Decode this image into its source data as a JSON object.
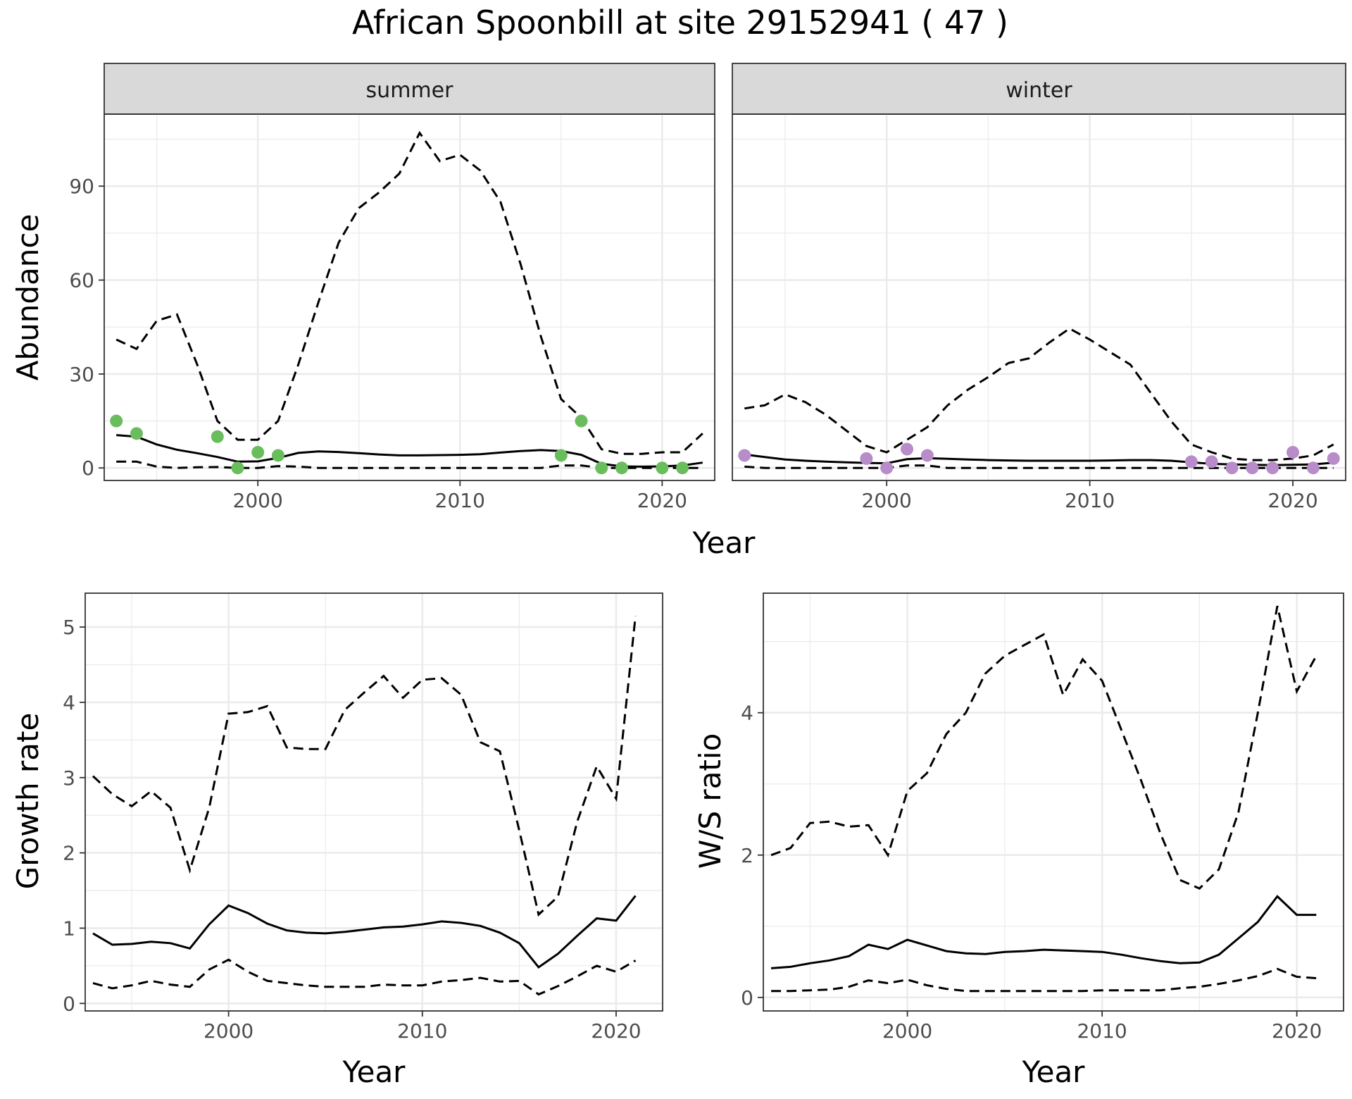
{
  "figure": {
    "title": "African Spoonbill at site 29152941 ( 47 )"
  },
  "chart_data": [
    {
      "id": "abundance-summer",
      "type": "line",
      "strip": "summer",
      "xlabel": "",
      "ylabel": "Abundance",
      "xlim": [
        1992.4,
        2022.6
      ],
      "ylim": [
        -4,
        113
      ],
      "xticks": [
        2000,
        2010,
        2020
      ],
      "yticks": [
        0,
        30,
        60,
        90
      ],
      "grid": true,
      "series": [
        {
          "role": "estimate",
          "x": [
            1993,
            1994,
            1995,
            1996,
            1997,
            1998,
            1999,
            2000,
            2001,
            2002,
            2003,
            2004,
            2005,
            2006,
            2007,
            2008,
            2009,
            2010,
            2011,
            2012,
            2013,
            2014,
            2015,
            2016,
            2017,
            2018,
            2019,
            2020,
            2021,
            2022
          ],
          "y": [
            10.5,
            10,
            7.5,
            5.8,
            4.7,
            3.5,
            2,
            2.1,
            3.2,
            4.8,
            5.3,
            5.1,
            4.7,
            4.3,
            4,
            4,
            4.1,
            4.2,
            4.4,
            4.9,
            5.4,
            5.7,
            5.4,
            4.2,
            1.3,
            0.5,
            0.4,
            0.5,
            0.8,
            1.7
          ]
        },
        {
          "role": "upper",
          "x": [
            1993,
            1994,
            1995,
            1996,
            1997,
            1998,
            1999,
            2000,
            2001,
            2002,
            2003,
            2004,
            2005,
            2006,
            2007,
            2008,
            2009,
            2010,
            2011,
            2012,
            2013,
            2014,
            2015,
            2016,
            2017,
            2018,
            2019,
            2020,
            2021,
            2022
          ],
          "y": [
            41,
            38,
            47,
            49,
            33,
            15,
            9,
            9,
            15,
            33,
            53,
            72,
            83,
            88,
            94,
            107,
            98,
            100,
            95,
            85,
            65,
            42,
            22,
            16,
            6,
            4.5,
            4.5,
            5,
            5,
            11
          ]
        },
        {
          "role": "lower",
          "x": [
            1993,
            1994,
            1995,
            1996,
            1997,
            1998,
            1999,
            2000,
            2001,
            2002,
            2003,
            2004,
            2005,
            2006,
            2007,
            2008,
            2009,
            2010,
            2011,
            2012,
            2013,
            2014,
            2015,
            2016,
            2017,
            2018,
            2019,
            2020,
            2021,
            2022
          ],
          "y": [
            2,
            2,
            0.4,
            0,
            0.2,
            0.3,
            0,
            0,
            0.6,
            0.4,
            0,
            0,
            0,
            0,
            0,
            0,
            0,
            0,
            0,
            0,
            0,
            0,
            0.8,
            0.8,
            0,
            0,
            0,
            0,
            0,
            0
          ]
        }
      ],
      "points": {
        "color": "#6abd5c",
        "x": [
          1993,
          1994,
          1998,
          1999,
          2000,
          2001,
          2015,
          2016,
          2017,
          2018,
          2020,
          2021
        ],
        "y": [
          15,
          11,
          10,
          0,
          5,
          4,
          4,
          15,
          0,
          0,
          0,
          0
        ]
      }
    },
    {
      "id": "abundance-winter",
      "type": "line",
      "strip": "winter",
      "xlabel": "",
      "ylabel": "",
      "xlim": [
        1992.4,
        2022.6
      ],
      "ylim": [
        -4,
        113
      ],
      "xticks": [
        2000,
        2010,
        2020
      ],
      "yticks": [
        0,
        30,
        60,
        90
      ],
      "grid": true,
      "series": [
        {
          "role": "estimate",
          "x": [
            1993,
            1994,
            1995,
            1996,
            1997,
            1998,
            1999,
            2000,
            2001,
            2002,
            2003,
            2004,
            2005,
            2006,
            2007,
            2008,
            2009,
            2010,
            2011,
            2012,
            2013,
            2014,
            2015,
            2016,
            2017,
            2018,
            2019,
            2020,
            2021,
            2022
          ],
          "y": [
            4.3,
            3.5,
            2.7,
            2.3,
            2,
            1.8,
            1.6,
            1.5,
            2.8,
            3.1,
            2.9,
            2.7,
            2.5,
            2.4,
            2.3,
            2.3,
            2.3,
            2.3,
            2.4,
            2.5,
            2.5,
            2.3,
            1.8,
            1.3,
            1.1,
            1,
            0.9,
            1,
            1.1,
            1.7
          ]
        },
        {
          "role": "upper",
          "x": [
            1993,
            1994,
            1995,
            1996,
            1997,
            1998,
            1999,
            2000,
            2001,
            2002,
            2003,
            2004,
            2005,
            2006,
            2007,
            2008,
            2009,
            2010,
            2011,
            2012,
            2013,
            2014,
            2015,
            2016,
            2017,
            2018,
            2019,
            2020,
            2021,
            2022
          ],
          "y": [
            19,
            20,
            23.5,
            21,
            17,
            12,
            7,
            5,
            9,
            13,
            20,
            25,
            29,
            33.5,
            35,
            40,
            44.5,
            41,
            37,
            33,
            24,
            15,
            7.5,
            5,
            3,
            2.5,
            2.5,
            3,
            4,
            7.5
          ]
        },
        {
          "role": "lower",
          "x": [
            1993,
            1994,
            1995,
            1996,
            1997,
            1998,
            1999,
            2000,
            2001,
            2002,
            2003,
            2004,
            2005,
            2006,
            2007,
            2008,
            2009,
            2010,
            2011,
            2012,
            2013,
            2014,
            2015,
            2016,
            2017,
            2018,
            2019,
            2020,
            2021,
            2022
          ],
          "y": [
            0.4,
            0,
            0,
            0,
            0,
            0,
            0,
            0,
            0.8,
            0.8,
            0,
            0,
            0,
            0,
            0,
            0,
            0,
            0,
            0,
            0,
            0,
            0,
            0,
            0,
            0,
            0,
            0,
            0,
            0,
            0
          ]
        }
      ],
      "points": {
        "color": "#b78cc9",
        "x": [
          1993,
          1999,
          2000,
          2001,
          2002,
          2015,
          2016,
          2017,
          2018,
          2019,
          2020,
          2021,
          2022
        ],
        "y": [
          4,
          3,
          0,
          6,
          4,
          2,
          2,
          0,
          0,
          0,
          5,
          0,
          3
        ]
      }
    },
    {
      "id": "growth-rate",
      "type": "line",
      "xlabel": "Year",
      "ylabel": "Growth rate",
      "xlim": [
        1992.6,
        2022.4
      ],
      "ylim": [
        -0.1,
        5.45
      ],
      "xticks": [
        2000,
        2010,
        2020
      ],
      "yticks": [
        0,
        1,
        2,
        3,
        4,
        5
      ],
      "grid": true,
      "series": [
        {
          "role": "estimate",
          "x": [
            1993,
            1994,
            1995,
            1996,
            1997,
            1998,
            1999,
            2000,
            2001,
            2002,
            2003,
            2004,
            2005,
            2006,
            2007,
            2008,
            2009,
            2010,
            2011,
            2012,
            2013,
            2014,
            2015,
            2016,
            2017,
            2018,
            2019,
            2020,
            2021
          ],
          "y": [
            0.93,
            0.78,
            0.79,
            0.82,
            0.8,
            0.73,
            1.05,
            1.3,
            1.2,
            1.06,
            0.97,
            0.94,
            0.93,
            0.95,
            0.98,
            1.01,
            1.02,
            1.05,
            1.09,
            1.07,
            1.03,
            0.94,
            0.8,
            0.48,
            0.66,
            0.9,
            1.13,
            1.1,
            1.43
          ]
        },
        {
          "role": "upper",
          "x": [
            1993,
            1994,
            1995,
            1996,
            1997,
            1998,
            1999,
            2000,
            2001,
            2002,
            2003,
            2004,
            2005,
            2006,
            2007,
            2008,
            2009,
            2010,
            2011,
            2012,
            2013,
            2014,
            2015,
            2016,
            2017,
            2018,
            2019,
            2020,
            2021
          ],
          "y": [
            3.02,
            2.78,
            2.62,
            2.82,
            2.6,
            1.77,
            2.6,
            3.85,
            3.87,
            3.95,
            3.4,
            3.38,
            3.38,
            3.9,
            4.13,
            4.35,
            4.06,
            4.3,
            4.32,
            4.1,
            3.47,
            3.35,
            2.3,
            1.18,
            1.42,
            2.42,
            3.15,
            2.72,
            5.15
          ]
        },
        {
          "role": "lower",
          "x": [
            1993,
            1994,
            1995,
            1996,
            1997,
            1998,
            1999,
            2000,
            2001,
            2002,
            2003,
            2004,
            2005,
            2006,
            2007,
            2008,
            2009,
            2010,
            2011,
            2012,
            2013,
            2014,
            2015,
            2016,
            2017,
            2018,
            2019,
            2020,
            2021
          ],
          "y": [
            0.27,
            0.2,
            0.24,
            0.3,
            0.25,
            0.22,
            0.45,
            0.58,
            0.42,
            0.3,
            0.27,
            0.24,
            0.22,
            0.22,
            0.22,
            0.25,
            0.24,
            0.24,
            0.29,
            0.31,
            0.34,
            0.29,
            0.3,
            0.12,
            0.23,
            0.36,
            0.5,
            0.42,
            0.57
          ]
        }
      ]
    },
    {
      "id": "ws-ratio",
      "type": "line",
      "xlabel": "Year",
      "ylabel": "W/S ratio",
      "xlim": [
        1992.6,
        2022.4
      ],
      "ylim": [
        -0.19,
        5.68
      ],
      "xticks": [
        2000,
        2010,
        2020
      ],
      "yticks": [
        0,
        2,
        4
      ],
      "grid": true,
      "series": [
        {
          "role": "estimate",
          "x": [
            1993,
            1994,
            1995,
            1996,
            1997,
            1998,
            1999,
            2000,
            2001,
            2002,
            2003,
            2004,
            2005,
            2006,
            2007,
            2008,
            2009,
            2010,
            2011,
            2012,
            2013,
            2014,
            2015,
            2016,
            2017,
            2018,
            2019,
            2020,
            2021
          ],
          "y": [
            0.41,
            0.43,
            0.48,
            0.52,
            0.58,
            0.74,
            0.68,
            0.81,
            0.73,
            0.65,
            0.62,
            0.61,
            0.64,
            0.65,
            0.67,
            0.66,
            0.65,
            0.64,
            0.6,
            0.55,
            0.51,
            0.48,
            0.49,
            0.6,
            0.83,
            1.06,
            1.42,
            1.16,
            1.16
          ]
        },
        {
          "role": "upper",
          "x": [
            1993,
            1994,
            1995,
            1996,
            1997,
            1998,
            1999,
            2000,
            2001,
            2002,
            2003,
            2004,
            2005,
            2006,
            2007,
            2008,
            2009,
            2010,
            2011,
            2012,
            2013,
            2014,
            2015,
            2016,
            2017,
            2018,
            2019,
            2020,
            2021
          ],
          "y": [
            2,
            2.1,
            2.45,
            2.47,
            2.4,
            2.42,
            2,
            2.9,
            3.15,
            3.7,
            4,
            4.55,
            4.8,
            4.95,
            5.1,
            4.25,
            4.75,
            4.45,
            3.75,
            3.05,
            2.3,
            1.65,
            1.53,
            1.8,
            2.6,
            4,
            5.5,
            4.3,
            4.8
          ]
        },
        {
          "role": "lower",
          "x": [
            1993,
            1994,
            1995,
            1996,
            1997,
            1998,
            1999,
            2000,
            2001,
            2002,
            2003,
            2004,
            2005,
            2006,
            2007,
            2008,
            2009,
            2010,
            2011,
            2012,
            2013,
            2014,
            2015,
            2016,
            2017,
            2018,
            2019,
            2020,
            2021
          ],
          "y": [
            0.09,
            0.09,
            0.1,
            0.11,
            0.15,
            0.24,
            0.2,
            0.25,
            0.17,
            0.12,
            0.09,
            0.09,
            0.09,
            0.09,
            0.09,
            0.09,
            0.09,
            0.1,
            0.1,
            0.1,
            0.1,
            0.13,
            0.15,
            0.19,
            0.24,
            0.3,
            0.4,
            0.29,
            0.27
          ]
        }
      ]
    }
  ],
  "shared_axis": {
    "top_xlabel": "Year"
  }
}
